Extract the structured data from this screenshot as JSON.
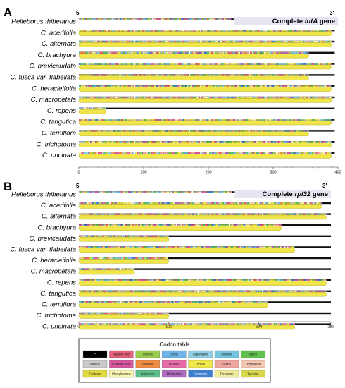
{
  "panels": [
    {
      "id": "A",
      "label": "A",
      "five_prime": "5'",
      "three_prime": "3'",
      "gene_prefix": "Complete ",
      "gene_name": "infA",
      "gene_suffix": " gene",
      "axis_max": 400,
      "ticks": [
        {
          "value": 0,
          "label": "0"
        },
        {
          "value": 100,
          "label": "100"
        },
        {
          "value": 200,
          "label": "200"
        },
        {
          "value": 300,
          "label": "300"
        },
        {
          "value": 400,
          "label": "400"
        }
      ],
      "rows": [
        {
          "name": "Helleborus thibetanus",
          "ref": true,
          "gene_length": 235,
          "aligned_length": 395
        },
        {
          "name": "C. acerifolia",
          "gene_length": 390,
          "aligned_length": 395
        },
        {
          "name": "C. alternata",
          "gene_length": 390,
          "aligned_length": 395
        },
        {
          "name": "C. brachyura",
          "gene_length": 355,
          "aligned_length": 395
        },
        {
          "name": "C. brevicaudata",
          "gene_length": 390,
          "aligned_length": 395
        },
        {
          "name": "C. fusca var. flabellata",
          "gene_length": 355,
          "aligned_length": 395
        },
        {
          "name": "C. heracleifolia",
          "gene_length": 390,
          "aligned_length": 395
        },
        {
          "name": "C. macropetala",
          "gene_length": 390,
          "aligned_length": 395
        },
        {
          "name": "C. repens",
          "gene_length": 42,
          "aligned_length": 395
        },
        {
          "name": "C. tangutica",
          "gene_length": 390,
          "aligned_length": 395
        },
        {
          "name": "C. terniflora",
          "gene_length": 355,
          "aligned_length": 395
        },
        {
          "name": "C. trichotoma",
          "gene_length": 390,
          "aligned_length": 395
        },
        {
          "name": "C. uncinata",
          "gene_length": 390,
          "aligned_length": 395
        }
      ]
    },
    {
      "id": "B",
      "label": "B",
      "five_prime": "5'",
      "three_prime": "3'",
      "gene_prefix": "Complete ",
      "gene_name": "rpl32",
      "gene_suffix": " gene",
      "axis_max": 280,
      "ticks": [
        {
          "value": 0,
          "label": "0"
        },
        {
          "value": 100,
          "label": "100"
        },
        {
          "value": 200,
          "label": "200"
        },
        {
          "value": 280,
          "label": "280"
        }
      ],
      "rows": [
        {
          "name": "Helleborus thibetanus",
          "ref": true,
          "gene_length": 170,
          "aligned_length": 280
        },
        {
          "name": "C. acerifolia",
          "gene_length": 270,
          "aligned_length": 280
        },
        {
          "name": "C. alternata",
          "gene_length": 275,
          "aligned_length": 280
        },
        {
          "name": "C. brachyura",
          "gene_length": 225,
          "aligned_length": 280
        },
        {
          "name": "C. brevicaudata",
          "gene_length": 100,
          "aligned_length": 280
        },
        {
          "name": "C. fusca var. flabellata",
          "gene_length": 240,
          "aligned_length": 280
        },
        {
          "name": "C. heracleifolia",
          "gene_length": 100,
          "aligned_length": 280
        },
        {
          "name": "C. macropetala",
          "gene_length": 62,
          "aligned_length": 280
        },
        {
          "name": "C. repens",
          "gene_length": 275,
          "aligned_length": 280
        },
        {
          "name": "C. tangutica",
          "gene_length": 275,
          "aligned_length": 280
        },
        {
          "name": "C. terniflora",
          "gene_length": 210,
          "aligned_length": 280
        },
        {
          "name": "C. trichotoma",
          "gene_length": 100,
          "aligned_length": 280
        },
        {
          "name": "C. uncinata",
          "gene_length": 240,
          "aligned_length": 280
        }
      ]
    }
  ],
  "legend": {
    "title": "Codon table",
    "entries": [
      {
        "name": "*",
        "color": "#000000",
        "text_color": "#ffffff"
      },
      {
        "name": "Aspartic acid",
        "color": "#e8607a",
        "text_color": "#222222"
      },
      {
        "name": "Glycine",
        "color": "#9acd4c",
        "text_color": "#222222"
      },
      {
        "name": "Lysine",
        "color": "#6fb4e8",
        "text_color": "#222222"
      },
      {
        "name": "Asparagine",
        "color": "#8fd0e8",
        "text_color": "#222222"
      },
      {
        "name": "Arginine",
        "color": "#74c6e0",
        "text_color": "#222222"
      },
      {
        "name": "Valine",
        "color": "#5fc24f",
        "text_color": "#222222"
      },
      {
        "name": "Alanine",
        "color": "#c9c9c9",
        "text_color": "#222222"
      },
      {
        "name": "Glutamic acid",
        "color": "#d7559c",
        "text_color": "#222222"
      },
      {
        "name": "Histidine",
        "color": "#f08c42",
        "text_color": "#222222"
      },
      {
        "name": "Leucine",
        "color": "#e86aa8",
        "text_color": "#222222"
      },
      {
        "name": "Proline",
        "color": "#f2e84a",
        "text_color": "#222222"
      },
      {
        "name": "Serine",
        "color": "#f2a6a0",
        "text_color": "#222222"
      },
      {
        "name": "Tryptophan",
        "color": "#f6c7b0",
        "text_color": "#222222"
      },
      {
        "name": "Cysteine",
        "color": "#e2da3c",
        "text_color": "#222222"
      },
      {
        "name": "Phenylalanine",
        "color": "#fbf6b0",
        "text_color": "#222222"
      },
      {
        "name": "Isoleucine",
        "color": "#5bbf8a",
        "text_color": "#222222"
      },
      {
        "name": "Methionine",
        "color": "#b06ac0",
        "text_color": "#222222"
      },
      {
        "name": "Glutamine",
        "color": "#3c7fd0",
        "text_color": "#ffffff"
      },
      {
        "name": "Threonine",
        "color": "#f0ec9a",
        "text_color": "#222222"
      },
      {
        "name": "Tyrosine",
        "color": "#d8d84a",
        "text_color": "#222222"
      }
    ]
  },
  "colors": {
    "gene_bar": "#f0e64a",
    "gene_bar_edge": "#a8a010",
    "alignment_line": "#111111",
    "gene_box_fill": "#e6e6f2",
    "inner_line": "#ffffff"
  }
}
